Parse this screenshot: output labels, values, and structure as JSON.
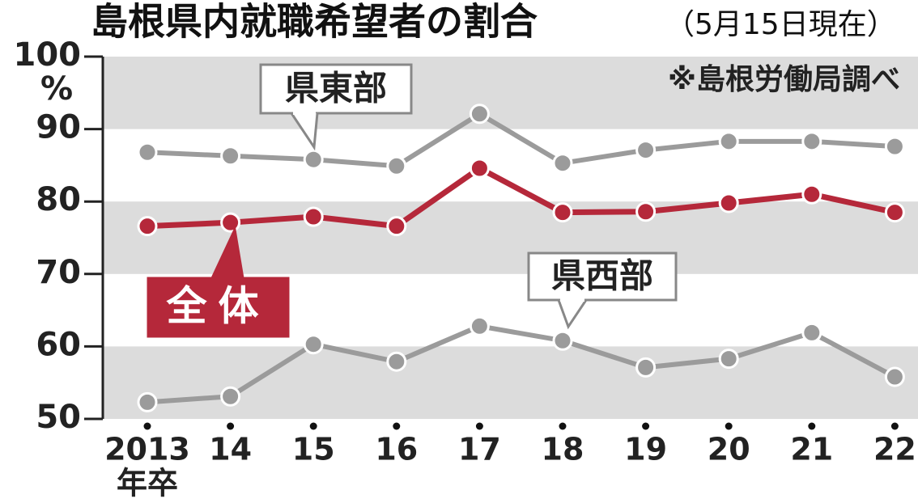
{
  "chart_data": {
    "type": "line",
    "title": "島根県内就職希望者の割合",
    "subtitle": "（5月15日現在）",
    "note": "※島根労働局調べ",
    "y_unit": "%",
    "x_unit": "年卒",
    "categories": [
      "2013",
      "14",
      "15",
      "16",
      "17",
      "18",
      "19",
      "20",
      "21",
      "22"
    ],
    "series": [
      {
        "name": "県東部",
        "color": "#9b9b9b",
        "values": [
          86.8,
          86.3,
          85.8,
          84.9,
          92.1,
          85.3,
          87.1,
          88.3,
          88.3,
          87.6
        ]
      },
      {
        "name": "全体",
        "color": "#b5283a",
        "values": [
          76.6,
          77.1,
          77.9,
          76.6,
          84.6,
          78.5,
          78.6,
          79.8,
          81.0,
          78.5
        ]
      },
      {
        "name": "県西部",
        "color": "#9b9b9b",
        "values": [
          52.3,
          53.1,
          60.3,
          57.9,
          62.8,
          60.8,
          57.1,
          58.3,
          61.9,
          55.8
        ]
      }
    ],
    "ylim": [
      50,
      100
    ],
    "yticks": [
      50,
      60,
      70,
      80,
      90,
      100
    ],
    "grid": true
  }
}
